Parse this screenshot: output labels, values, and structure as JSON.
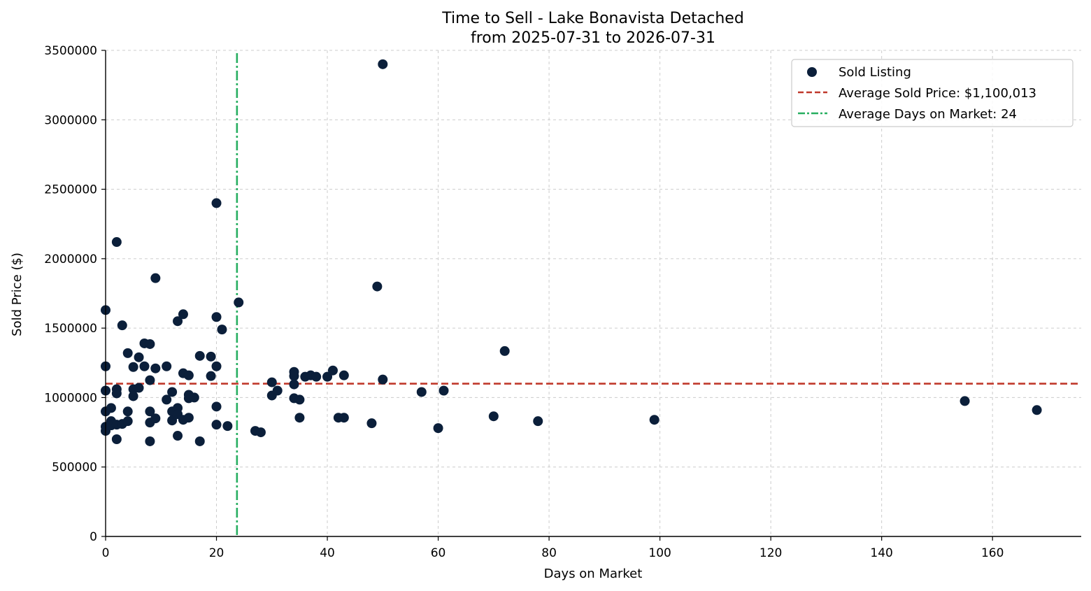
{
  "chart_data": {
    "type": "scatter",
    "title": "Time to Sell - Lake Bonavista Detached",
    "subtitle": "from 2025-07-31 to 2026-07-31",
    "xlabel": "Days on Market",
    "ylabel": "Sold Price ($)",
    "xlim": [
      0,
      176
    ],
    "ylim": [
      0,
      3500000
    ],
    "xticks": [
      0,
      20,
      40,
      60,
      80,
      100,
      120,
      140,
      160
    ],
    "yticks": [
      0,
      500000,
      1000000,
      1500000,
      2000000,
      2500000,
      3000000,
      3500000
    ],
    "xtick_labels": [
      "0",
      "20",
      "40",
      "60",
      "80",
      "100",
      "120",
      "140",
      "160"
    ],
    "ytick_labels": [
      "0",
      "500000",
      "1000000",
      "1500000",
      "2000000",
      "2500000",
      "3000000",
      "3500000"
    ],
    "grid": true,
    "legend_position": "top-right",
    "colors": {
      "points": "#0b1f3a",
      "avg_price_line": "#c0392b",
      "avg_days_line": "#27ae60",
      "grid": "#cccccc"
    },
    "series": [
      {
        "name": "Sold Listing",
        "points": [
          [
            0,
            1630000
          ],
          [
            0,
            1225000
          ],
          [
            0,
            1050000
          ],
          [
            0,
            900000
          ],
          [
            0,
            790000
          ],
          [
            0,
            760000
          ],
          [
            1,
            925000
          ],
          [
            1,
            830000
          ],
          [
            1,
            800000
          ],
          [
            2,
            2120000
          ],
          [
            2,
            1060000
          ],
          [
            2,
            1030000
          ],
          [
            2,
            805000
          ],
          [
            2,
            700000
          ],
          [
            3,
            1520000
          ],
          [
            3,
            810000
          ],
          [
            4,
            1320000
          ],
          [
            4,
            900000
          ],
          [
            4,
            830000
          ],
          [
            5,
            1220000
          ],
          [
            5,
            1060000
          ],
          [
            5,
            1010000
          ],
          [
            6,
            1290000
          ],
          [
            6,
            1070000
          ],
          [
            7,
            1390000
          ],
          [
            7,
            1225000
          ],
          [
            8,
            1385000
          ],
          [
            8,
            1125000
          ],
          [
            8,
            900000
          ],
          [
            8,
            820000
          ],
          [
            8,
            685000
          ],
          [
            9,
            1860000
          ],
          [
            9,
            1210000
          ],
          [
            9,
            850000
          ],
          [
            11,
            1225000
          ],
          [
            11,
            985000
          ],
          [
            12,
            1040000
          ],
          [
            12,
            900000
          ],
          [
            12,
            835000
          ],
          [
            13,
            1550000
          ],
          [
            13,
            925000
          ],
          [
            13,
            880000
          ],
          [
            13,
            725000
          ],
          [
            14,
            1600000
          ],
          [
            14,
            1175000
          ],
          [
            14,
            840000
          ],
          [
            15,
            1160000
          ],
          [
            15,
            1020000
          ],
          [
            15,
            995000
          ],
          [
            15,
            855000
          ],
          [
            16,
            1000000
          ],
          [
            17,
            1300000
          ],
          [
            17,
            685000
          ],
          [
            19,
            1295000
          ],
          [
            19,
            1155000
          ],
          [
            20,
            2400000
          ],
          [
            20,
            1580000
          ],
          [
            20,
            1225000
          ],
          [
            20,
            935000
          ],
          [
            20,
            805000
          ],
          [
            21,
            1490000
          ],
          [
            22,
            795000
          ],
          [
            24,
            1685000
          ],
          [
            27,
            760000
          ],
          [
            28,
            750000
          ],
          [
            30,
            1110000
          ],
          [
            30,
            1015000
          ],
          [
            31,
            1050000
          ],
          [
            34,
            1185000
          ],
          [
            34,
            1155000
          ],
          [
            34,
            1095000
          ],
          [
            34,
            995000
          ],
          [
            35,
            985000
          ],
          [
            35,
            855000
          ],
          [
            36,
            1150000
          ],
          [
            37,
            1160000
          ],
          [
            38,
            1150000
          ],
          [
            40,
            1150000
          ],
          [
            41,
            1195000
          ],
          [
            42,
            855000
          ],
          [
            43,
            1160000
          ],
          [
            43,
            855000
          ],
          [
            48,
            815000
          ],
          [
            49,
            1800000
          ],
          [
            50,
            3400000
          ],
          [
            50,
            1130000
          ],
          [
            57,
            1040000
          ],
          [
            60,
            780000
          ],
          [
            61,
            1050000
          ],
          [
            70,
            865000
          ],
          [
            72,
            1335000
          ],
          [
            78,
            830000
          ],
          [
            99,
            840000
          ],
          [
            155,
            975000
          ],
          [
            168,
            910000
          ]
        ]
      }
    ],
    "reference_lines": [
      {
        "name": "Average Sold Price: $1,100,013",
        "orientation": "horizontal",
        "value": 1100013,
        "style": "dashed"
      },
      {
        "name": "Average Days on Market: 24",
        "orientation": "vertical",
        "value": 23.7,
        "style": "dash-dot"
      }
    ]
  }
}
